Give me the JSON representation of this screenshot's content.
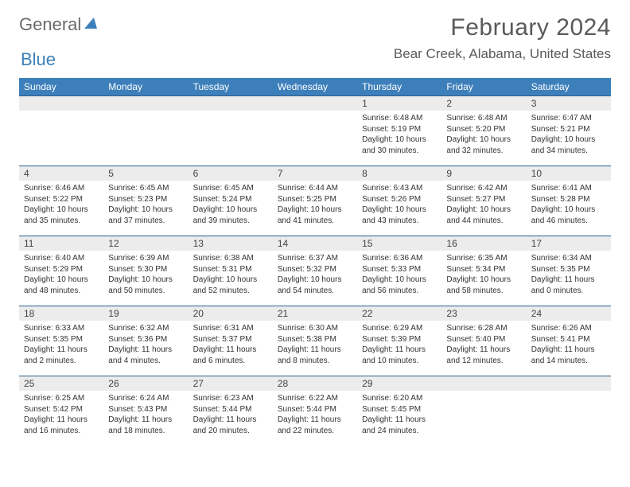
{
  "brand": {
    "part1": "General",
    "part2": "Blue"
  },
  "title": "February 2024",
  "location": "Bear Creek, Alabama, United States",
  "colors": {
    "header_bg": "#3d7fba",
    "header_text": "#ffffff",
    "row_border": "#2f5f8a",
    "daynum_bg": "#ececec",
    "text": "#333333",
    "title_color": "#5a5a5a"
  },
  "weekdays": [
    "Sunday",
    "Monday",
    "Tuesday",
    "Wednesday",
    "Thursday",
    "Friday",
    "Saturday"
  ],
  "leading_blanks": 4,
  "days": [
    {
      "n": 1,
      "sunrise": "6:48 AM",
      "sunset": "5:19 PM",
      "daylight": "10 hours and 30 minutes."
    },
    {
      "n": 2,
      "sunrise": "6:48 AM",
      "sunset": "5:20 PM",
      "daylight": "10 hours and 32 minutes."
    },
    {
      "n": 3,
      "sunrise": "6:47 AM",
      "sunset": "5:21 PM",
      "daylight": "10 hours and 34 minutes."
    },
    {
      "n": 4,
      "sunrise": "6:46 AM",
      "sunset": "5:22 PM",
      "daylight": "10 hours and 35 minutes."
    },
    {
      "n": 5,
      "sunrise": "6:45 AM",
      "sunset": "5:23 PM",
      "daylight": "10 hours and 37 minutes."
    },
    {
      "n": 6,
      "sunrise": "6:45 AM",
      "sunset": "5:24 PM",
      "daylight": "10 hours and 39 minutes."
    },
    {
      "n": 7,
      "sunrise": "6:44 AM",
      "sunset": "5:25 PM",
      "daylight": "10 hours and 41 minutes."
    },
    {
      "n": 8,
      "sunrise": "6:43 AM",
      "sunset": "5:26 PM",
      "daylight": "10 hours and 43 minutes."
    },
    {
      "n": 9,
      "sunrise": "6:42 AM",
      "sunset": "5:27 PM",
      "daylight": "10 hours and 44 minutes."
    },
    {
      "n": 10,
      "sunrise": "6:41 AM",
      "sunset": "5:28 PM",
      "daylight": "10 hours and 46 minutes."
    },
    {
      "n": 11,
      "sunrise": "6:40 AM",
      "sunset": "5:29 PM",
      "daylight": "10 hours and 48 minutes."
    },
    {
      "n": 12,
      "sunrise": "6:39 AM",
      "sunset": "5:30 PM",
      "daylight": "10 hours and 50 minutes."
    },
    {
      "n": 13,
      "sunrise": "6:38 AM",
      "sunset": "5:31 PM",
      "daylight": "10 hours and 52 minutes."
    },
    {
      "n": 14,
      "sunrise": "6:37 AM",
      "sunset": "5:32 PM",
      "daylight": "10 hours and 54 minutes."
    },
    {
      "n": 15,
      "sunrise": "6:36 AM",
      "sunset": "5:33 PM",
      "daylight": "10 hours and 56 minutes."
    },
    {
      "n": 16,
      "sunrise": "6:35 AM",
      "sunset": "5:34 PM",
      "daylight": "10 hours and 58 minutes."
    },
    {
      "n": 17,
      "sunrise": "6:34 AM",
      "sunset": "5:35 PM",
      "daylight": "11 hours and 0 minutes."
    },
    {
      "n": 18,
      "sunrise": "6:33 AM",
      "sunset": "5:35 PM",
      "daylight": "11 hours and 2 minutes."
    },
    {
      "n": 19,
      "sunrise": "6:32 AM",
      "sunset": "5:36 PM",
      "daylight": "11 hours and 4 minutes."
    },
    {
      "n": 20,
      "sunrise": "6:31 AM",
      "sunset": "5:37 PM",
      "daylight": "11 hours and 6 minutes."
    },
    {
      "n": 21,
      "sunrise": "6:30 AM",
      "sunset": "5:38 PM",
      "daylight": "11 hours and 8 minutes."
    },
    {
      "n": 22,
      "sunrise": "6:29 AM",
      "sunset": "5:39 PM",
      "daylight": "11 hours and 10 minutes."
    },
    {
      "n": 23,
      "sunrise": "6:28 AM",
      "sunset": "5:40 PM",
      "daylight": "11 hours and 12 minutes."
    },
    {
      "n": 24,
      "sunrise": "6:26 AM",
      "sunset": "5:41 PM",
      "daylight": "11 hours and 14 minutes."
    },
    {
      "n": 25,
      "sunrise": "6:25 AM",
      "sunset": "5:42 PM",
      "daylight": "11 hours and 16 minutes."
    },
    {
      "n": 26,
      "sunrise": "6:24 AM",
      "sunset": "5:43 PM",
      "daylight": "11 hours and 18 minutes."
    },
    {
      "n": 27,
      "sunrise": "6:23 AM",
      "sunset": "5:44 PM",
      "daylight": "11 hours and 20 minutes."
    },
    {
      "n": 28,
      "sunrise": "6:22 AM",
      "sunset": "5:44 PM",
      "daylight": "11 hours and 22 minutes."
    },
    {
      "n": 29,
      "sunrise": "6:20 AM",
      "sunset": "5:45 PM",
      "daylight": "11 hours and 24 minutes."
    }
  ],
  "labels": {
    "sunrise": "Sunrise:",
    "sunset": "Sunset:",
    "daylight": "Daylight:"
  }
}
